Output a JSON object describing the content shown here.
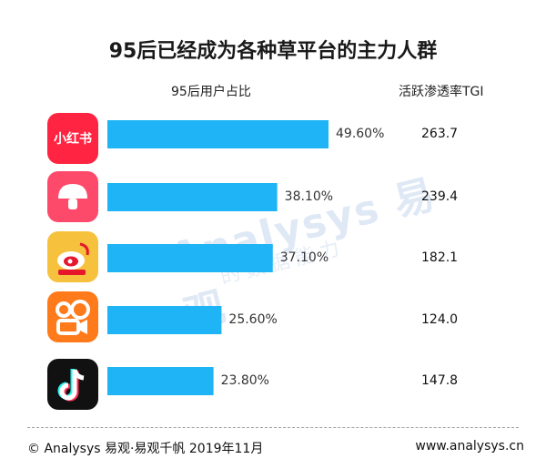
{
  "title": "95后已经成为各种草平台的主力人群",
  "column_headers": {
    "share": "95后用户占比",
    "tgi": "活跃渗透率TGI"
  },
  "watermark": {
    "brand": "Analysys 易观",
    "tagline": "的数据能力"
  },
  "footer": {
    "copyright": "© Analysys 易观·易观千帆 2019年11月",
    "website": "www.analysys.cn"
  },
  "colors": {
    "bar": "#1eb4f5"
  },
  "rows": [
    {
      "app_icon": "xiaohongshu-icon",
      "icon_text": "小红书",
      "icon_color": "#ff2442"
    },
    {
      "app_icon": "mushroom-icon",
      "icon_text": "",
      "icon_color": "#fe4a6a"
    },
    {
      "app_icon": "weibo-icon",
      "icon_text": "",
      "icon_color": "#f6c23e"
    },
    {
      "app_icon": "kuaishou-icon",
      "icon_text": "",
      "icon_color": "#ff7a1a"
    },
    {
      "app_icon": "tiktok-icon",
      "icon_text": "",
      "icon_color": "#111111"
    }
  ],
  "chart_data": {
    "type": "bar",
    "orientation": "horizontal",
    "categories": [
      "小红书",
      "蘑菇街",
      "微博",
      "快手",
      "抖音"
    ],
    "series": [
      {
        "name": "95后用户占比",
        "values": [
          49.6,
          38.1,
          37.1,
          25.6,
          23.8
        ],
        "labels": [
          "49.60%",
          "38.10%",
          "37.10%",
          "25.60%",
          "23.80%"
        ]
      },
      {
        "name": "活跃渗透率TGI",
        "values": [
          263.7,
          239.4,
          182.1,
          124.0,
          147.8
        ],
        "labels": [
          "263.7",
          "239.4",
          "182.1",
          "124.0",
          "147.8"
        ]
      }
    ],
    "xlim": [
      0,
      70
    ],
    "grid": false,
    "legend": "none"
  }
}
